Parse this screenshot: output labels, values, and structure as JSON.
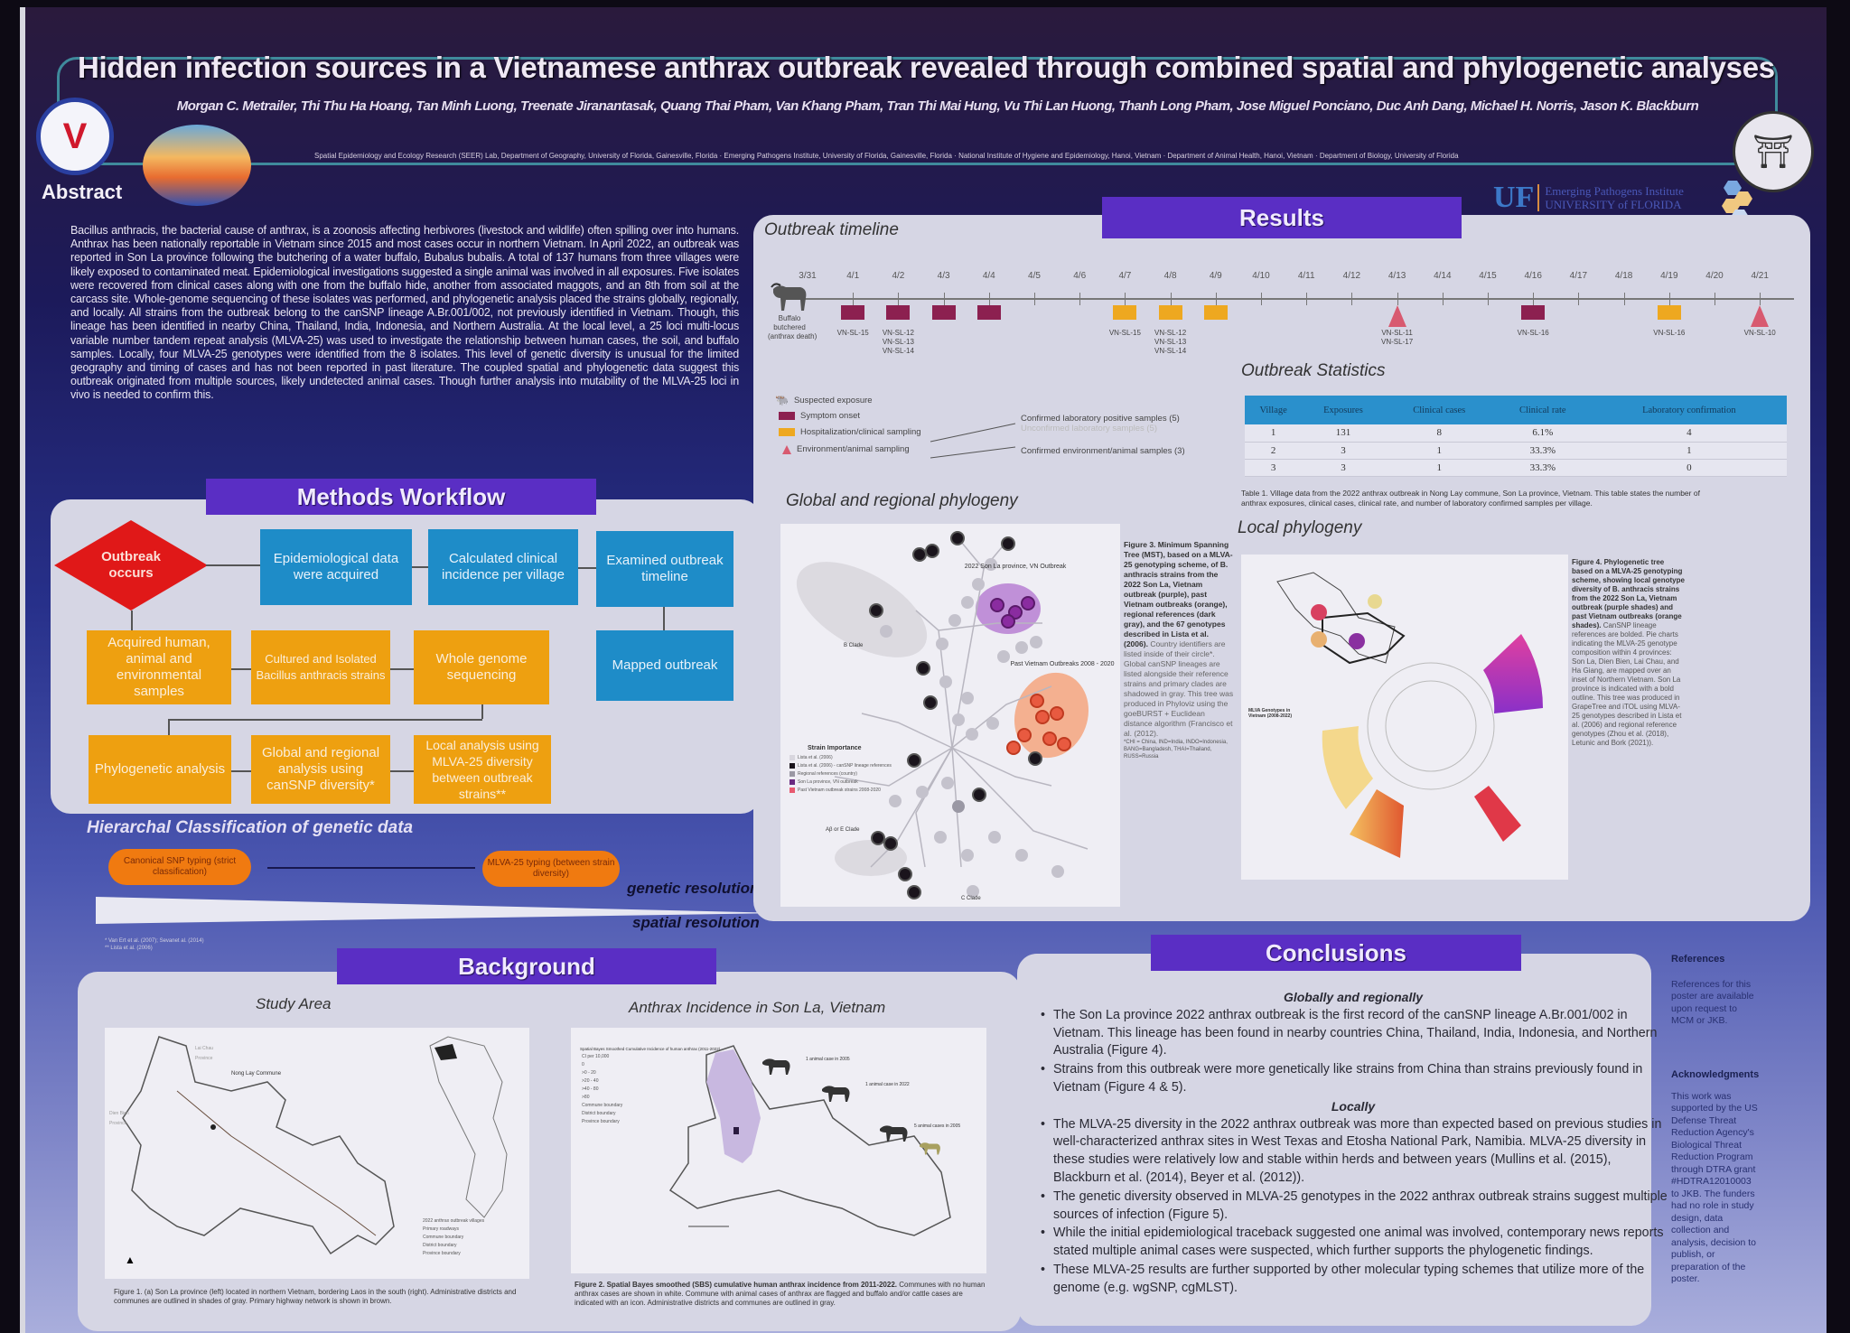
{
  "header": {
    "title": "Hidden infection sources in a Vietnamese anthrax outbreak revealed through combined spatial and phylogenetic analyses",
    "authors": "Morgan C. Metrailer, Thi Thu Ha Hoang, Tan Minh Luong, Treenate Jiranantasak, Quang Thai Pham, Van Khang Pham, Tran Thi Mai Hung, Vu Thi Lan Huong, Thanh Long Pham, Jose Miguel Ponciano, Duc Anh Dang, Michael H. Norris, Jason K. Blackburn",
    "affiliations": "Spatial Epidemiology and Ecology Research (SEER) Lab, Department of Geography, University of Florida, Gainesville, Florida · Emerging Pathogens Institute, University of Florida, Gainesville, Florida · National Institute of Hygiene and Epidemiology, Hanoi, Vietnam · Department of Animal Health, Hanoi, Vietnam · Department of Biology, University of Florida",
    "uf_logo": "UF",
    "uf_institute": "Emerging Pathogens Institute",
    "uf_university": "UNIVERSITY of FLORIDA",
    "logo_left_glyph": "V",
    "logo_right_glyph": "⛩"
  },
  "abstract": {
    "heading": "Abstract",
    "text": "Bacillus anthracis, the bacterial cause of anthrax, is a zoonosis affecting herbivores (livestock and wildlife) often spilling over into humans. Anthrax has been nationally reportable in Vietnam since 2015 and most cases occur in northern Vietnam. In April 2022, an outbreak was reported in Son La province following the butchering of a water buffalo, Bubalus bubalis. A total of 137 humans from three villages were likely exposed to contaminated meat. Epidemiological investigations suggested a single animal was involved in all exposures. Five isolates were recovered from clinical cases along with one from the buffalo hide, another from associated maggots, and an 8th from soil at the carcass site. Whole-genome sequencing of these isolates was performed, and phylogenetic analysis placed the strains globally, regionally, and locally. All strains from the outbreak belong to the canSNP lineage A.Br.001/002, not previously identified in Vietnam. Though, this lineage has been identified in nearby China, Thailand, India, Indonesia, and Northern Australia. At the local level, a 25 loci multi-locus variable number tandem repeat analysis (MLVA-25) was used to investigate the relationship between human cases, the soil, and buffalo samples. Locally, four MLVA-25 genotypes were identified from the 8 isolates. This level of genetic diversity is unusual for the limited geography and timing of cases and has not been reported in past literature. The coupled spatial and phylogenetic data suggest this outbreak originated from multiple sources, likely undetected animal cases. Though further analysis into mutability of the MLVA-25 loci in vivo is needed to confirm this."
  },
  "methods": {
    "heading": "Methods Workflow",
    "start": "Outbreak occurs",
    "blue_steps": [
      "Epidemiological data were acquired",
      "Calculated clinical incidence per village",
      "Examined outbreak timeline",
      "Mapped outbreak"
    ],
    "orange_row1": [
      "Acquired human, animal and environmental samples",
      "Cultured and Isolated Bacillus anthracis strains",
      "Whole genome sequencing"
    ],
    "orange_row2": [
      "Phylogenetic analysis",
      "Global and regional analysis using canSNP diversity*",
      "Local analysis using MLVA-25 diversity between outbreak strains**"
    ],
    "hierarchy_title": "Hierarchal Classification of genetic data",
    "pill_left": "Canonical SNP typing (strict classification)",
    "pill_right": "MLVA-25 typing (between strain diversity)",
    "genetic_resolution": "genetic resolution",
    "spatial_resolution": "spatial resolution",
    "footnotes": [
      "* Van Ert et al. (2007); Sevanet al. (2014)",
      "** Lista et al. (2006)"
    ]
  },
  "results": {
    "heading": "Results",
    "timeline_title": "Outbreak timeline",
    "dates": [
      "3/31",
      "4/1",
      "4/2",
      "4/3",
      "4/4",
      "4/5",
      "4/6",
      "4/7",
      "4/8",
      "4/9",
      "4/10",
      "4/11",
      "4/12",
      "4/13",
      "4/14",
      "4/15",
      "4/16",
      "4/17",
      "4/18",
      "4/19",
      "4/20",
      "4/21"
    ],
    "start_label": "Buffalo\nbutchered\n(anthrax death)",
    "markers": [
      {
        "type": "sym",
        "day": 1,
        "label": "VN-SL-15"
      },
      {
        "type": "sym",
        "day": 2,
        "label": "VN-SL-12\nVN-SL-13\nVN-SL-14"
      },
      {
        "type": "sym",
        "day": 3,
        "label": ""
      },
      {
        "type": "sym",
        "day": 4,
        "label": ""
      },
      {
        "type": "hosp",
        "day": 7,
        "label": "VN-SL-15"
      },
      {
        "type": "hosp",
        "day": 8,
        "label": "VN-SL-12\nVN-SL-13\nVN-SL-14"
      },
      {
        "type": "hosp",
        "day": 9,
        "label": ""
      },
      {
        "type": "env",
        "day": 13,
        "label": "VN-SL-11\nVN-SL-17"
      },
      {
        "type": "sym",
        "day": 16,
        "label": "VN-SL-16"
      },
      {
        "type": "hosp",
        "day": 19,
        "label": "VN-SL-16"
      },
      {
        "type": "env",
        "day": 21,
        "label": "VN-SL-10"
      }
    ],
    "legend": [
      "Suspected exposure",
      "Symptom onset",
      "Hospitalization/clinical sampling",
      "Environment/animal sampling"
    ],
    "legend_notes": [
      "Confirmed laboratory positive samples (5)",
      "Unconfirmed laboratory samples (5)",
      "Confirmed environment/animal samples (3)"
    ],
    "stats_title": "Outbreak Statistics",
    "stats_columns": [
      "Village",
      "Exposures",
      "Clinical cases",
      "Clinical rate",
      "Laboratory confirmation"
    ],
    "stats_rows": [
      [
        "1",
        "131",
        "8",
        "6.1%",
        "4"
      ],
      [
        "2",
        "3",
        "1",
        "33.3%",
        "1"
      ],
      [
        "3",
        "3",
        "1",
        "33.3%",
        "0"
      ]
    ],
    "table_caption": "Table 1. Village data from the 2022 anthrax outbreak in Nong Lay commune, Son La province, Vietnam. This table states the number of anthrax exposures, clinical cases, clinical rate, and number of laboratory confirmed samples per village.",
    "global_title": "Global and regional phylogeny",
    "mst_labels": {
      "son_la": "2022 Son La province, VN Outbreak",
      "past_vn": "Past Vietnam Outbreaks 2008 - 2020",
      "b_clade": "B Clade",
      "c_clade": "C Clade",
      "ab_clade": "Aβ or E Clade"
    },
    "mst_legend_title": "Strain Importance",
    "mst_legend": [
      "Lista et al. (2006)",
      "Lista et al. (2006) - canSNP lineage references",
      "Regional references (country)",
      "Son La province, VN outbreak",
      "Past Vietnam outbreak strains 2008-2020"
    ],
    "fig3_caption_bold": "Figure 3. Minimum Spanning Tree (MST), based on a MLVA-25 genotyping scheme, of B. anthracis strains from the 2022 Son La, Vietnam outbreak (purple), past Vietnam outbreaks (orange), regional references (dark gray), and the 67 genotypes described in Lista et al. (2006).",
    "fig3_caption": "Country identifiers are listed inside of their circle*. Global canSNP lineages are listed alongside their reference strains and primary clades are shadowed in gray. This tree was produced in Phyloviz using the goeBURST + Euclidean distance algorithm (Francisco et al. (2012).",
    "fig3_note": "*CHI = China, IND=India, INDO=Indonesia, BANG=Bangladesh, THAI=Thailand, RUSS=Russia",
    "local_title": "Local phylogeny",
    "fig4_legend_title": "MLVA Genotypes in Vietnam (2008-2022)",
    "fig4_caption_bold": "Figure 4. Phylogenetic tree based on a MLVA-25 genotyping scheme, showing local genotype diversity of B. anthracis strains from the 2022 Son La, Vietnam outbreak (purple shades) and past Vietnam outbreaks (orange shades).",
    "fig4_caption": "CanSNP lineage references are bolded. Pie charts indicating the MLVA-25 genotype composition within 4 provinces: Son La, Dien Bien, Lai Chau, and Ha Giang, are mapped over an inset of Northern Vietnam. Son La province is indicated with a bold outline. This tree was produced in GrapeTree and iTOL using MLVA-25 genotypes described in Lista et al. (2006) and regional reference genotypes (Zhou et al. (2018), Letunic and Bork (2021))."
  },
  "background": {
    "heading": "Background",
    "study_area_title": "Study Area",
    "map1_labels": {
      "commune": "Nong Lay Commune",
      "lai_chau": "Lai Chau Province",
      "dien_bien": "Dien Bien Province"
    },
    "map1_legend": [
      "2022 anthrax outbreak villages",
      "Primary roadways",
      "Commune boundary",
      "District boundary",
      "Province boundary"
    ],
    "fig1_caption": "Figure 1. (a) Son La province (left) located in northern Vietnam, bordering Laos in the south (right). Administrative districts and communes are outlined in shades of gray. Primary highway network is shown in brown.",
    "incidence_title": "Anthrax Incidence in Son La, Vietnam",
    "map2_legend_title": "Spatial Bayes Smoothed Cumulative Incidence of human anthrax (2011-2022)",
    "map2_legend": [
      "CI per 10,000",
      "0",
      ">0 - 20",
      ">20 - 40",
      ">40 - 80",
      ">80",
      "Commune boundary",
      "District boundary",
      "Province boundary"
    ],
    "map2_annotations": [
      "1 animal case in 2005",
      "1 animal case in 2022",
      "5 animal cases in 2005"
    ],
    "fig2_caption_bold": "Figure 2. Spatial Bayes smoothed (SBS) cumulative human anthrax incidence from 2011-2022.",
    "fig2_caption": "Communes with no human anthrax cases are shown in white. Commune with animal cases of anthrax are flagged and buffalo and/or cattle cases are indicated with an icon. Administrative districts and communes are outlined in gray."
  },
  "conclusions": {
    "heading": "Conclusions",
    "global_heading": "Globally and regionally",
    "global_points": [
      "The Son La province 2022 anthrax outbreak is the first record of the canSNP lineage A.Br.001/002 in Vietnam. This lineage has been found in nearby countries China, Thailand, India, Indonesia, and Northern Australia (Figure 4).",
      "Strains from this outbreak were more genetically like strains from China than strains previously found in Vietnam (Figure 4 & 5)."
    ],
    "local_heading": "Locally",
    "local_points": [
      "The MLVA-25 diversity in the 2022 anthrax outbreak was more than expected based on previous studies in well-characterized anthrax sites in West Texas and Etosha National Park, Namibia. MLVA-25 diversity in these studies were relatively low and stable within herds and between years (Mullins et al. (2015), Blackburn et al. (2014), Beyer et al. (2012)).",
      "The genetic diversity observed in MLVA-25 genotypes in the 2022 anthrax outbreak strains suggest multiple sources of infection (Figure 5).",
      "While the initial epidemiological traceback suggested one animal was involved, contemporary news reports stated multiple animal cases were suspected, which further supports the phylogenetic findings.",
      "These MLVA-25 results are further supported by other molecular typing schemes that utilize more of the genome (e.g. wgSNP, cgMLST)."
    ]
  },
  "sidebar": {
    "references_heading": "References",
    "references_text": "References for this poster are available upon request to MCM or JKB.",
    "ack_heading": "Acknowledgments",
    "ack_text": "This work was supported by the US Defense Threat Reduction Agency's Biological Threat Reduction Program through DTRA grant #HDTRA12010003 to JKB. The funders had no role in study design, data collection and analysis, decision to publish, or preparation of the poster."
  },
  "colors": {
    "section_header": "#5a2ec4",
    "workflow_blue": "#1e8cc8",
    "workflow_orange": "#eea010",
    "outbreak_red": "#e01818",
    "symptom_onset": "#8c2050",
    "hospitalization": "#eea820",
    "environment": "#d85a70",
    "son_la_cluster": "#a050c8",
    "past_vn_cluster": "#f0a080"
  }
}
